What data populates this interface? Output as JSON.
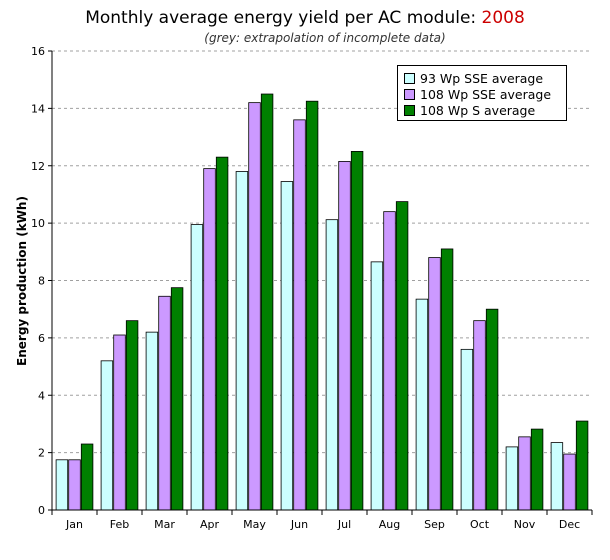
{
  "chart_data": {
    "type": "bar",
    "title": "Monthly average energy yield per AC module:",
    "title_year": "2008",
    "subtitle": "(grey: extrapolation of incomplete data)",
    "ylabel": "Energy production (kWh)",
    "xlabel": "",
    "ylim": [
      0,
      16
    ],
    "yticks": [
      0,
      2,
      4,
      6,
      8,
      10,
      12,
      14,
      16
    ],
    "grid": true,
    "legend_position": "top-right",
    "categories": [
      "Jan",
      "Feb",
      "Mar",
      "Apr",
      "May",
      "Jun",
      "Jul",
      "Aug",
      "Sep",
      "Oct",
      "Nov",
      "Dec"
    ],
    "series": [
      {
        "name": "93 Wp SSE average",
        "color": "#ccffff",
        "values": [
          1.75,
          5.2,
          6.2,
          9.95,
          11.8,
          11.45,
          10.12,
          8.65,
          7.35,
          5.6,
          2.2,
          2.35
        ]
      },
      {
        "name": "108 Wp SSE average",
        "color": "#cc99ff",
        "values": [
          1.75,
          6.1,
          7.45,
          11.9,
          14.2,
          13.6,
          12.15,
          10.4,
          8.8,
          6.6,
          2.55,
          1.95
        ]
      },
      {
        "name": "108 Wp S average",
        "color": "#008000",
        "values": [
          2.3,
          6.6,
          7.75,
          12.3,
          14.5,
          14.25,
          12.5,
          10.75,
          9.1,
          7.0,
          2.82,
          3.1
        ]
      }
    ]
  }
}
